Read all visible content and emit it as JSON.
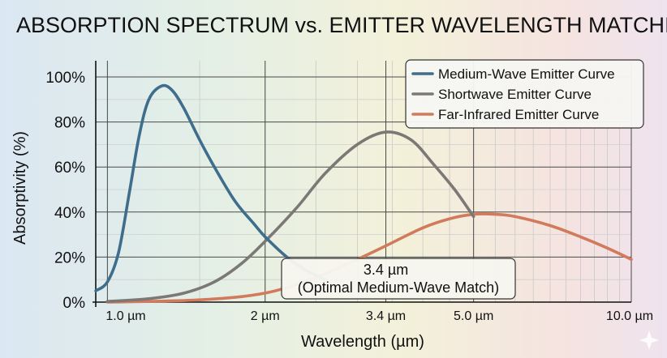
{
  "chart_data": {
    "type": "line",
    "title": "ABSORPTION SPECTRUM vs. EMITTER WAVELENGTH MATCHING",
    "xlabel": "Wavelength (µm)",
    "ylabel": "Absorptivity (%)",
    "x_scale": "log",
    "xlim": [
      0.95,
      10.0
    ],
    "ylim": [
      0,
      100
    ],
    "x_ticks": [
      {
        "value": 1.0,
        "label": "1.0 µm"
      },
      {
        "value": 2.0,
        "label": "2 µm"
      },
      {
        "value": 3.4,
        "label": "3.4 µm"
      },
      {
        "value": 5.0,
        "label": "5.0 µm"
      },
      {
        "value": 10.0,
        "label": "10.0 µm"
      }
    ],
    "y_ticks": [
      {
        "value": 0,
        "label": "0%"
      },
      {
        "value": 20,
        "label": "20%"
      },
      {
        "value": 40,
        "label": "40%"
      },
      {
        "value": 60,
        "label": "60%"
      },
      {
        "value": 80,
        "label": "80%"
      },
      {
        "value": 100,
        "label": "100%"
      }
    ],
    "grid": true,
    "legend_position": "top-right",
    "series": [
      {
        "name": "Medium-Wave Emitter Curve",
        "color": "#3f6d8c",
        "x": [
          0.95,
          1.0,
          1.05,
          1.1,
          1.15,
          1.2,
          1.27,
          1.33,
          1.4,
          1.5,
          1.6,
          1.75,
          1.9,
          2.0,
          2.2,
          2.4,
          2.6
        ],
        "y": [
          5,
          9,
          22,
          48,
          74,
          90,
          96,
          94,
          86,
          72,
          60,
          45,
          35,
          29,
          20,
          14,
          10
        ]
      },
      {
        "name": "Shortwave Emitter Curve",
        "color": "#7c7876",
        "x": [
          1.0,
          1.2,
          1.4,
          1.6,
          1.8,
          2.0,
          2.3,
          2.6,
          3.0,
          3.4,
          3.8,
          4.2,
          4.6,
          5.0
        ],
        "y": [
          0.3,
          1.5,
          4,
          9,
          17,
          27,
          42,
          57,
          70,
          75.5,
          72,
          61,
          50,
          38
        ]
      },
      {
        "name": "Far-Infrared Emitter Curve",
        "color": "#d27a5c",
        "x": [
          1.0,
          1.5,
          2.0,
          2.5,
          3.0,
          3.4,
          4.0,
          4.5,
          5.0,
          5.5,
          6.0,
          7.0,
          8.0,
          9.0,
          10.0
        ],
        "y": [
          0,
          1,
          4,
          11,
          19,
          25,
          33,
          37,
          39,
          39,
          38,
          34,
          29,
          24,
          19
        ]
      }
    ],
    "annotations": [
      {
        "x": 3.4,
        "y": 11,
        "text_line1": "3.4 µm",
        "text_line2": "(Optimal Medium-Wave Match)"
      }
    ]
  }
}
